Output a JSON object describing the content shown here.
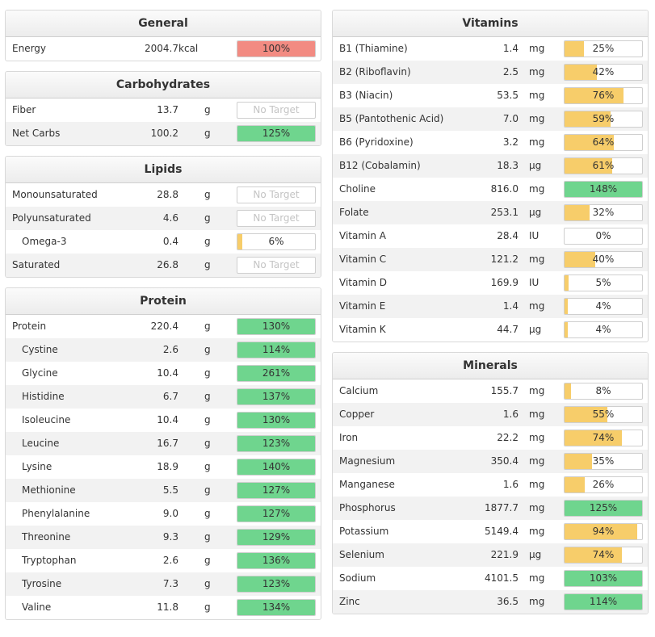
{
  "colors": {
    "red": "#f28b82",
    "green": "#6fd58e",
    "yellow": "#f7cd6a"
  },
  "left": [
    {
      "key": "general",
      "title": "General",
      "rows": [
        {
          "name": "Energy",
          "amount": "2004.7",
          "unit": "kcal",
          "label": "100%",
          "pct": 100,
          "color": "red",
          "indent": false,
          "energy": true
        }
      ]
    },
    {
      "key": "carbohydrates",
      "title": "Carbohydrates",
      "rows": [
        {
          "name": "Fiber",
          "amount": "13.7",
          "unit": "g",
          "label": "No Target",
          "pct": 0,
          "color": "none",
          "indent": false
        },
        {
          "name": "Net Carbs",
          "amount": "100.2",
          "unit": "g",
          "label": "125%",
          "pct": 100,
          "color": "green",
          "indent": false
        }
      ]
    },
    {
      "key": "lipids",
      "title": "Lipids",
      "rows": [
        {
          "name": "Monounsaturated",
          "amount": "28.8",
          "unit": "g",
          "label": "No Target",
          "pct": 0,
          "color": "none",
          "indent": false
        },
        {
          "name": "Polyunsaturated",
          "amount": "4.6",
          "unit": "g",
          "label": "No Target",
          "pct": 0,
          "color": "none",
          "indent": false
        },
        {
          "name": "Omega-3",
          "amount": "0.4",
          "unit": "g",
          "label": "6%",
          "pct": 6,
          "color": "yellow",
          "indent": true
        },
        {
          "name": "Saturated",
          "amount": "26.8",
          "unit": "g",
          "label": "No Target",
          "pct": 0,
          "color": "none",
          "indent": false
        }
      ]
    },
    {
      "key": "protein",
      "title": "Protein",
      "rows": [
        {
          "name": "Protein",
          "amount": "220.4",
          "unit": "g",
          "label": "130%",
          "pct": 100,
          "color": "green",
          "indent": false
        },
        {
          "name": "Cystine",
          "amount": "2.6",
          "unit": "g",
          "label": "114%",
          "pct": 100,
          "color": "green",
          "indent": true
        },
        {
          "name": "Glycine",
          "amount": "10.4",
          "unit": "g",
          "label": "261%",
          "pct": 100,
          "color": "green",
          "indent": true
        },
        {
          "name": "Histidine",
          "amount": "6.7",
          "unit": "g",
          "label": "137%",
          "pct": 100,
          "color": "green",
          "indent": true
        },
        {
          "name": "Isoleucine",
          "amount": "10.4",
          "unit": "g",
          "label": "130%",
          "pct": 100,
          "color": "green",
          "indent": true
        },
        {
          "name": "Leucine",
          "amount": "16.7",
          "unit": "g",
          "label": "123%",
          "pct": 100,
          "color": "green",
          "indent": true
        },
        {
          "name": "Lysine",
          "amount": "18.9",
          "unit": "g",
          "label": "140%",
          "pct": 100,
          "color": "green",
          "indent": true
        },
        {
          "name": "Methionine",
          "amount": "5.5",
          "unit": "g",
          "label": "127%",
          "pct": 100,
          "color": "green",
          "indent": true
        },
        {
          "name": "Phenylalanine",
          "amount": "9.0",
          "unit": "g",
          "label": "127%",
          "pct": 100,
          "color": "green",
          "indent": true
        },
        {
          "name": "Threonine",
          "amount": "9.3",
          "unit": "g",
          "label": "129%",
          "pct": 100,
          "color": "green",
          "indent": true
        },
        {
          "name": "Tryptophan",
          "amount": "2.6",
          "unit": "g",
          "label": "136%",
          "pct": 100,
          "color": "green",
          "indent": true
        },
        {
          "name": "Tyrosine",
          "amount": "7.3",
          "unit": "g",
          "label": "123%",
          "pct": 100,
          "color": "green",
          "indent": true
        },
        {
          "name": "Valine",
          "amount": "11.8",
          "unit": "g",
          "label": "134%",
          "pct": 100,
          "color": "green",
          "indent": true
        }
      ]
    }
  ],
  "right": [
    {
      "key": "vitamins",
      "title": "Vitamins",
      "rows": [
        {
          "name": "B1 (Thiamine)",
          "amount": "1.4",
          "unit": "mg",
          "label": "25%",
          "pct": 25,
          "color": "yellow",
          "indent": false
        },
        {
          "name": "B2 (Riboflavin)",
          "amount": "2.5",
          "unit": "mg",
          "label": "42%",
          "pct": 42,
          "color": "yellow",
          "indent": false
        },
        {
          "name": "B3 (Niacin)",
          "amount": "53.5",
          "unit": "mg",
          "label": "76%",
          "pct": 76,
          "color": "yellow",
          "indent": false
        },
        {
          "name": "B5 (Pantothenic Acid)",
          "amount": "7.0",
          "unit": "mg",
          "label": "59%",
          "pct": 59,
          "color": "yellow",
          "indent": false
        },
        {
          "name": "B6 (Pyridoxine)",
          "amount": "3.2",
          "unit": "mg",
          "label": "64%",
          "pct": 64,
          "color": "yellow",
          "indent": false
        },
        {
          "name": "B12 (Cobalamin)",
          "amount": "18.3",
          "unit": "µg",
          "label": "61%",
          "pct": 61,
          "color": "yellow",
          "indent": false
        },
        {
          "name": "Choline",
          "amount": "816.0",
          "unit": "mg",
          "label": "148%",
          "pct": 100,
          "color": "green",
          "indent": false
        },
        {
          "name": "Folate",
          "amount": "253.1",
          "unit": "µg",
          "label": "32%",
          "pct": 32,
          "color": "yellow",
          "indent": false
        },
        {
          "name": "Vitamin A",
          "amount": "28.4",
          "unit": "IU",
          "label": "0%",
          "pct": 0,
          "color": "yellow",
          "indent": false
        },
        {
          "name": "Vitamin C",
          "amount": "121.2",
          "unit": "mg",
          "label": "40%",
          "pct": 40,
          "color": "yellow",
          "indent": false
        },
        {
          "name": "Vitamin D",
          "amount": "169.9",
          "unit": "IU",
          "label": "5%",
          "pct": 5,
          "color": "yellow",
          "indent": false
        },
        {
          "name": "Vitamin E",
          "amount": "1.4",
          "unit": "mg",
          "label": "4%",
          "pct": 4,
          "color": "yellow",
          "indent": false
        },
        {
          "name": "Vitamin K",
          "amount": "44.7",
          "unit": "µg",
          "label": "4%",
          "pct": 4,
          "color": "yellow",
          "indent": false
        }
      ]
    },
    {
      "key": "minerals",
      "title": "Minerals",
      "rows": [
        {
          "name": "Calcium",
          "amount": "155.7",
          "unit": "mg",
          "label": "8%",
          "pct": 8,
          "color": "yellow",
          "indent": false
        },
        {
          "name": "Copper",
          "amount": "1.6",
          "unit": "mg",
          "label": "55%",
          "pct": 55,
          "color": "yellow",
          "indent": false
        },
        {
          "name": "Iron",
          "amount": "22.2",
          "unit": "mg",
          "label": "74%",
          "pct": 74,
          "color": "yellow",
          "indent": false
        },
        {
          "name": "Magnesium",
          "amount": "350.4",
          "unit": "mg",
          "label": "35%",
          "pct": 35,
          "color": "yellow",
          "indent": false
        },
        {
          "name": "Manganese",
          "amount": "1.6",
          "unit": "mg",
          "label": "26%",
          "pct": 26,
          "color": "yellow",
          "indent": false
        },
        {
          "name": "Phosphorus",
          "amount": "1877.7",
          "unit": "mg",
          "label": "125%",
          "pct": 100,
          "color": "green",
          "indent": false
        },
        {
          "name": "Potassium",
          "amount": "5149.4",
          "unit": "mg",
          "label": "94%",
          "pct": 94,
          "color": "yellow",
          "indent": false
        },
        {
          "name": "Selenium",
          "amount": "221.9",
          "unit": "µg",
          "label": "74%",
          "pct": 74,
          "color": "yellow",
          "indent": false
        },
        {
          "name": "Sodium",
          "amount": "4101.5",
          "unit": "mg",
          "label": "103%",
          "pct": 100,
          "color": "green",
          "indent": false
        },
        {
          "name": "Zinc",
          "amount": "36.5",
          "unit": "mg",
          "label": "114%",
          "pct": 100,
          "color": "green",
          "indent": false
        }
      ]
    }
  ]
}
